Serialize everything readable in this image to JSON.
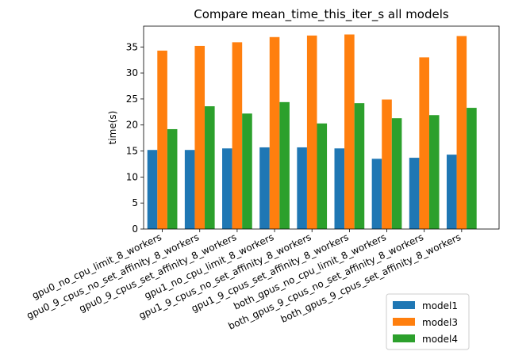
{
  "chart_data": {
    "type": "bar",
    "title": "Compare mean_time_this_iter_s all models",
    "xlabel": "",
    "ylabel": "time(s)",
    "ylim": [
      0,
      39
    ],
    "yticks": [
      0,
      5,
      10,
      15,
      20,
      25,
      30,
      35
    ],
    "grid": false,
    "legend_position": "lower-right",
    "categories": [
      "gpu0_no_cpu_limit_8_workers",
      "gpu0_9_cpus_no_set_affinity_8_workers",
      "gpu0_9_cpus_set_affinity_8_workers",
      "gpu1_no_cpu_limit_8_workers",
      "gpu1_9_cpus_no_set_affinity_8_workers",
      "gpu1_9_cpus_set_affinity_8_workers",
      "both_gpus_no_cpu_limit_8_workers",
      "both_gpus_9_cpus_no_set_affinity_8_workers",
      "both_gpus_9_cpus_set_affinity_8_workers"
    ],
    "series": [
      {
        "name": "model1",
        "color": "#1f77b4",
        "values": [
          15.2,
          15.2,
          15.5,
          15.7,
          15.7,
          15.5,
          13.5,
          13.7,
          14.3
        ]
      },
      {
        "name": "model3",
        "color": "#ff7f0e",
        "values": [
          34.3,
          35.2,
          35.9,
          36.9,
          37.2,
          37.4,
          24.9,
          33.0,
          37.1
        ]
      },
      {
        "name": "model4",
        "color": "#2ca02c",
        "values": [
          19.2,
          23.6,
          22.2,
          24.4,
          20.3,
          24.2,
          21.3,
          21.9,
          23.3
        ]
      }
    ]
  }
}
